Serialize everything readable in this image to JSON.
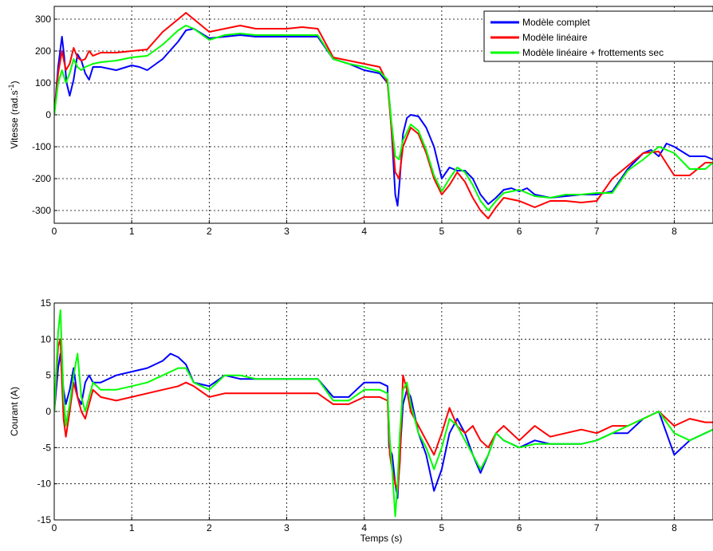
{
  "colors": {
    "series": [
      "#0000ff",
      "#ff0000",
      "#00ff00"
    ],
    "grid": "#000000",
    "background": "#ffffff"
  },
  "chart_data": [
    {
      "type": "line",
      "title": "",
      "xlabel": "",
      "ylabel": "Vitesse (rad.s-1)",
      "ylabel_main": "Vitesse (rad.s",
      "ylabel_sup": "-1",
      "ylabel_tail": ")",
      "xlim": [
        0,
        8.5
      ],
      "ylim": [
        -340,
        340
      ],
      "xticks": [
        0,
        1,
        2,
        3,
        4,
        5,
        6,
        7,
        8
      ],
      "xtick_labels": [
        "0",
        "1",
        "2",
        "3",
        "4",
        "5",
        "6",
        "7",
        "8"
      ],
      "yticks": [
        -300,
        -200,
        -100,
        0,
        100,
        200,
        300
      ],
      "ytick_labels": [
        "-300",
        "-200",
        "-100",
        "0",
        "100",
        "200",
        "300"
      ],
      "grid": true,
      "legend": {
        "placement": "top-right",
        "entries": [
          "Modèle complet",
          "Modèle linéaire",
          "Modèle linéaire + frottements sec"
        ]
      },
      "series": [
        {
          "name": "Modèle complet",
          "color": "#0000ff",
          "x": [
            0,
            0.05,
            0.1,
            0.13,
            0.16,
            0.2,
            0.25,
            0.3,
            0.35,
            0.4,
            0.45,
            0.5,
            0.6,
            0.8,
            1.0,
            1.1,
            1.2,
            1.4,
            1.6,
            1.7,
            1.8,
            2.0,
            2.2,
            2.4,
            2.6,
            2.8,
            3.0,
            3.2,
            3.4,
            3.6,
            3.8,
            4.0,
            4.2,
            4.3,
            4.33,
            4.36,
            4.4,
            4.43,
            4.46,
            4.5,
            4.55,
            4.6,
            4.7,
            4.8,
            4.9,
            5.0,
            5.1,
            5.2,
            5.3,
            5.4,
            5.5,
            5.6,
            5.7,
            5.8,
            5.9,
            6.0,
            6.1,
            6.2,
            6.4,
            6.6,
            6.8,
            7.0,
            7.2,
            7.4,
            7.6,
            7.7,
            7.8,
            7.9,
            8.0,
            8.2,
            8.4,
            8.5
          ],
          "y": [
            0,
            150,
            245,
            180,
            100,
            60,
            110,
            190,
            170,
            130,
            110,
            150,
            150,
            140,
            155,
            150,
            140,
            175,
            230,
            265,
            270,
            240,
            245,
            250,
            245,
            245,
            245,
            245,
            245,
            175,
            160,
            140,
            130,
            100,
            30,
            -80,
            -250,
            -285,
            -200,
            -60,
            -10,
            0,
            -5,
            -40,
            -100,
            -200,
            -165,
            -175,
            -175,
            -200,
            -250,
            -280,
            -260,
            -235,
            -230,
            -240,
            -230,
            -250,
            -260,
            -255,
            -250,
            -250,
            -240,
            -170,
            -120,
            -110,
            -130,
            -90,
            -100,
            -130,
            -130,
            -140
          ]
        },
        {
          "name": "Modèle linéaire",
          "color": "#ff0000",
          "x": [
            0,
            0.05,
            0.1,
            0.15,
            0.2,
            0.25,
            0.3,
            0.35,
            0.4,
            0.45,
            0.5,
            0.6,
            0.8,
            1.0,
            1.2,
            1.4,
            1.6,
            1.7,
            1.8,
            2.0,
            2.2,
            2.4,
            2.6,
            2.8,
            3.0,
            3.2,
            3.4,
            3.6,
            3.8,
            4.0,
            4.2,
            4.3,
            4.35,
            4.4,
            4.45,
            4.5,
            4.6,
            4.7,
            4.8,
            4.9,
            5.0,
            5.1,
            5.2,
            5.3,
            5.4,
            5.5,
            5.6,
            5.7,
            5.8,
            6.0,
            6.2,
            6.4,
            6.6,
            6.8,
            7.0,
            7.2,
            7.4,
            7.6,
            7.8,
            8.0,
            8.2,
            8.4,
            8.5
          ],
          "y": [
            0,
            130,
            200,
            140,
            160,
            210,
            180,
            170,
            175,
            200,
            185,
            195,
            195,
            200,
            205,
            260,
            300,
            320,
            300,
            260,
            270,
            280,
            270,
            270,
            270,
            275,
            270,
            180,
            170,
            160,
            150,
            100,
            -40,
            -180,
            -200,
            -100,
            -40,
            -60,
            -120,
            -200,
            -250,
            -220,
            -180,
            -210,
            -260,
            -300,
            -325,
            -290,
            -260,
            -270,
            -290,
            -270,
            -270,
            -275,
            -270,
            -200,
            -160,
            -120,
            -115,
            -190,
            -190,
            -150,
            -150
          ]
        },
        {
          "name": "Modèle linéaire + frottements sec",
          "color": "#00ff00",
          "x": [
            0,
            0.05,
            0.1,
            0.15,
            0.2,
            0.25,
            0.3,
            0.35,
            0.4,
            0.5,
            0.6,
            0.8,
            1.0,
            1.2,
            1.4,
            1.6,
            1.7,
            1.8,
            2.0,
            2.2,
            2.4,
            2.6,
            2.8,
            3.0,
            3.2,
            3.4,
            3.6,
            3.8,
            4.0,
            4.2,
            4.3,
            4.35,
            4.4,
            4.45,
            4.5,
            4.6,
            4.7,
            4.8,
            4.9,
            5.0,
            5.1,
            5.2,
            5.3,
            5.4,
            5.5,
            5.6,
            5.7,
            5.8,
            6.0,
            6.2,
            6.4,
            6.6,
            6.8,
            7.0,
            7.2,
            7.4,
            7.6,
            7.8,
            8.0,
            8.2,
            8.4,
            8.5
          ],
          "y": [
            0,
            100,
            140,
            100,
            130,
            175,
            150,
            140,
            150,
            160,
            165,
            170,
            180,
            185,
            220,
            265,
            280,
            270,
            235,
            250,
            255,
            250,
            250,
            250,
            250,
            250,
            175,
            160,
            150,
            135,
            110,
            -20,
            -130,
            -140,
            -80,
            -30,
            -50,
            -110,
            -190,
            -240,
            -200,
            -165,
            -180,
            -220,
            -270,
            -300,
            -270,
            -245,
            -235,
            -255,
            -260,
            -250,
            -250,
            -245,
            -245,
            -175,
            -140,
            -100,
            -120,
            -170,
            -170,
            -150
          ]
        }
      ]
    },
    {
      "type": "line",
      "title": "",
      "xlabel": "Temps (s)",
      "ylabel": "Courant (A)",
      "xlim": [
        0,
        8.5
      ],
      "ylim": [
        -15,
        15
      ],
      "xticks": [
        0,
        1,
        2,
        3,
        4,
        5,
        6,
        7,
        8
      ],
      "xtick_labels": [
        "0",
        "1",
        "2",
        "3",
        "4",
        "5",
        "6",
        "7",
        "8"
      ],
      "yticks": [
        -15,
        -10,
        -5,
        0,
        5,
        10,
        15
      ],
      "ytick_labels": [
        "-15",
        "-10",
        "-5",
        "0",
        "5",
        "10",
        "15"
      ],
      "grid": true,
      "series": [
        {
          "name": "Modèle complet",
          "color": "#0000ff",
          "x": [
            0,
            0.05,
            0.08,
            0.1,
            0.12,
            0.15,
            0.2,
            0.25,
            0.3,
            0.35,
            0.4,
            0.45,
            0.5,
            0.6,
            0.8,
            1.0,
            1.2,
            1.4,
            1.5,
            1.6,
            1.7,
            1.8,
            2.0,
            2.2,
            2.4,
            2.6,
            2.8,
            3.0,
            3.2,
            3.4,
            3.6,
            3.8,
            4.0,
            4.2,
            4.3,
            4.32,
            4.36,
            4.4,
            4.43,
            4.46,
            4.5,
            4.55,
            4.6,
            4.7,
            4.8,
            4.9,
            5.0,
            5.1,
            5.2,
            5.3,
            5.4,
            5.5,
            5.6,
            5.7,
            5.8,
            6.0,
            6.2,
            6.4,
            6.6,
            6.8,
            7.0,
            7.2,
            7.4,
            7.6,
            7.8,
            7.9,
            8.0,
            8.2,
            8.4,
            8.5
          ],
          "y": [
            0,
            6,
            8,
            5,
            3,
            1,
            3,
            6,
            2,
            1,
            4,
            5,
            4,
            4,
            5,
            5.5,
            6,
            7,
            8,
            7.5,
            6.5,
            4,
            3.5,
            5,
            4.5,
            4.5,
            4.5,
            4.5,
            4.5,
            4.5,
            2,
            2,
            4,
            4,
            3.5,
            -5,
            -6,
            -10,
            -12,
            -6,
            1,
            3,
            2,
            -3,
            -6,
            -11,
            -8,
            -3,
            -1,
            -3,
            -6,
            -8.5,
            -6,
            -3,
            -4,
            -5,
            -4,
            -4.5,
            -4.5,
            -4.5,
            -4,
            -3,
            -3,
            -1,
            0,
            -3,
            -6,
            -4,
            -3,
            -2.5
          ]
        },
        {
          "name": "Modèle linéaire",
          "color": "#ff0000",
          "x": [
            0,
            0.05,
            0.08,
            0.1,
            0.12,
            0.15,
            0.2,
            0.25,
            0.3,
            0.35,
            0.4,
            0.45,
            0.5,
            0.6,
            0.8,
            1.0,
            1.2,
            1.4,
            1.6,
            1.7,
            1.8,
            2.0,
            2.2,
            2.4,
            2.6,
            2.8,
            3.0,
            3.2,
            3.4,
            3.6,
            3.8,
            4.0,
            4.2,
            4.3,
            4.33,
            4.36,
            4.4,
            4.43,
            4.46,
            4.5,
            4.55,
            4.6,
            4.7,
            4.8,
            4.9,
            5.0,
            5.1,
            5.2,
            5.3,
            5.4,
            5.5,
            5.6,
            5.7,
            5.8,
            6.0,
            6.2,
            6.4,
            6.6,
            6.8,
            7.0,
            7.2,
            7.4,
            7.6,
            7.8,
            8.0,
            8.2,
            8.4,
            8.5
          ],
          "y": [
            0,
            9,
            10,
            4,
            -1,
            -3.5,
            0,
            4,
            2,
            0,
            -1,
            1,
            3,
            2,
            1.5,
            2,
            2.5,
            3,
            3.5,
            4,
            3.5,
            2,
            2.5,
            2.5,
            2.5,
            2.5,
            2.5,
            2.5,
            2.5,
            1,
            1,
            2,
            2,
            1.5,
            -6,
            -8,
            -10,
            -11,
            -7,
            5,
            3,
            0,
            -2,
            -4,
            -6,
            -3,
            0.5,
            -2,
            -3,
            -2,
            -4,
            -5,
            -3,
            -2,
            -4,
            -2,
            -3.5,
            -3,
            -2.5,
            -3,
            -2,
            -2,
            -1,
            0,
            -2,
            -1,
            -1.5,
            -1.5
          ]
        },
        {
          "name": "Modèle linéaire + frottements sec",
          "color": "#00ff00",
          "x": [
            0,
            0.05,
            0.08,
            0.1,
            0.12,
            0.15,
            0.2,
            0.25,
            0.3,
            0.35,
            0.4,
            0.45,
            0.5,
            0.6,
            0.8,
            1.0,
            1.2,
            1.4,
            1.6,
            1.7,
            1.8,
            2.0,
            2.2,
            2.4,
            2.6,
            2.8,
            3.0,
            3.2,
            3.4,
            3.6,
            3.8,
            4.0,
            4.2,
            4.3,
            4.33,
            4.36,
            4.4,
            4.43,
            4.46,
            4.5,
            4.55,
            4.6,
            4.7,
            4.8,
            4.9,
            5.0,
            5.1,
            5.2,
            5.3,
            5.4,
            5.5,
            5.6,
            5.7,
            5.8,
            6.0,
            6.2,
            6.4,
            6.6,
            6.8,
            7.0,
            7.2,
            7.4,
            7.6,
            7.8,
            8.0,
            8.2,
            8.4,
            8.5
          ],
          "y": [
            0,
            11,
            14,
            8,
            2,
            -2,
            1,
            5,
            8,
            2,
            0,
            2,
            4,
            3,
            3,
            3.5,
            4,
            5,
            6,
            6,
            4,
            3,
            5,
            5,
            4.5,
            4.5,
            4.5,
            4.5,
            4.5,
            1.5,
            1.5,
            3,
            3,
            2.5,
            -4,
            -8,
            -14.5,
            -10,
            -3,
            3,
            4,
            1,
            -3,
            -5,
            -8,
            -5,
            -1,
            -2,
            -4,
            -6,
            -8,
            -6,
            -3,
            -4,
            -5,
            -4.5,
            -4.5,
            -4.5,
            -4.5,
            -4,
            -3,
            -2,
            -1,
            0,
            -3,
            -4,
            -3,
            -2.5
          ]
        }
      ]
    }
  ]
}
